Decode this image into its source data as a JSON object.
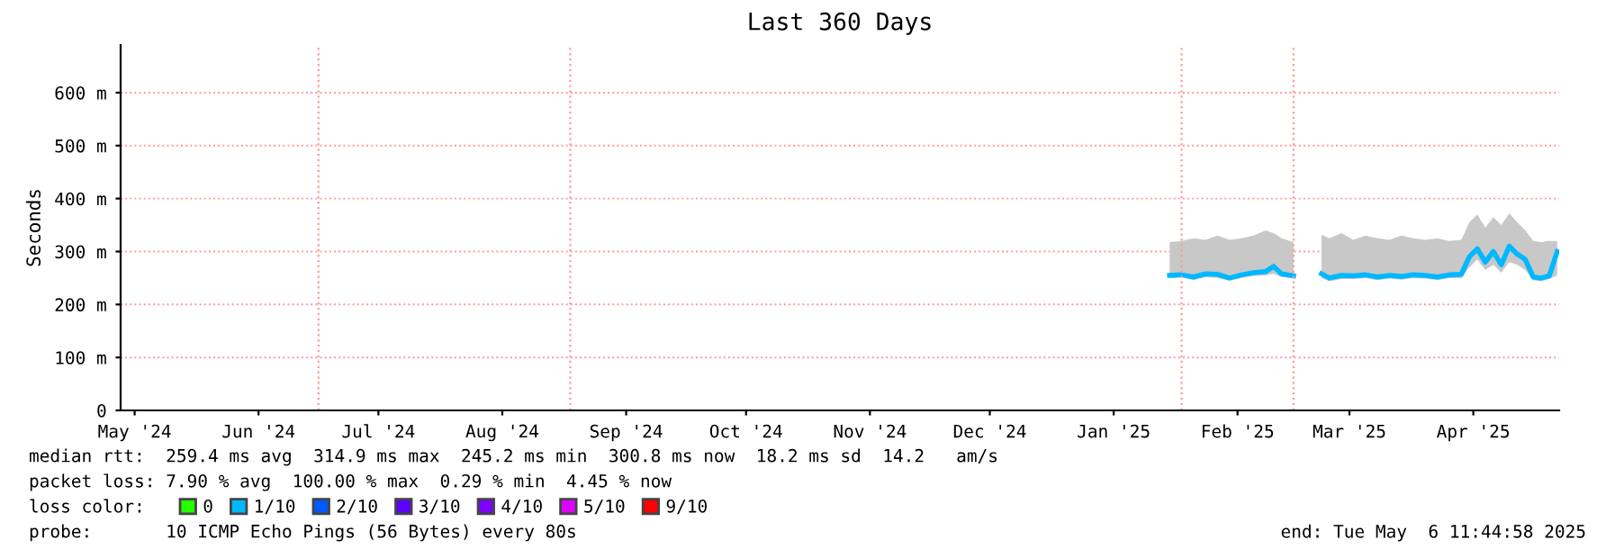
{
  "chart_data": {
    "type": "line",
    "title": "Last 360 Days",
    "ylabel": "Seconds",
    "x": [
      "2025-01-29",
      "2025-02-01",
      "2025-02-04",
      "2025-02-07",
      "2025-02-10",
      "2025-02-13",
      "2025-02-16",
      "2025-02-19",
      "2025-02-22",
      "2025-02-24",
      "2025-02-26",
      "2025-03-01",
      "2025-03-03",
      "2025-03-08",
      "2025-03-10",
      "2025-03-13",
      "2025-03-16",
      "2025-03-19",
      "2025-03-22",
      "2025-03-25",
      "2025-03-28",
      "2025-03-31",
      "2025-04-03",
      "2025-04-06",
      "2025-04-09",
      "2025-04-12",
      "2025-04-14",
      "2025-04-16",
      "2025-04-18",
      "2025-04-20",
      "2025-04-22",
      "2025-04-24",
      "2025-04-26",
      "2025-04-28",
      "2025-04-30",
      "2025-05-02",
      "2025-05-04",
      "2025-05-06"
    ],
    "series": [
      {
        "name": "0",
        "color": "#26ff00",
        "values": [
          null,
          null,
          null,
          null,
          null,
          null,
          null,
          null,
          null,
          null,
          null,
          null,
          null,
          null,
          null,
          null,
          null,
          null,
          null,
          null,
          null,
          null,
          null,
          null,
          null,
          null,
          null,
          null,
          null,
          null,
          null,
          null,
          null,
          null,
          null,
          null,
          null,
          null
        ]
      },
      {
        "name": "1/10",
        "color": "#00b8ff",
        "values": [
          255,
          256,
          252,
          258,
          257,
          250,
          256,
          260,
          262,
          272,
          258,
          254,
          null,
          258,
          250,
          255,
          254,
          256,
          252,
          255,
          253,
          256,
          255,
          252,
          256,
          257,
          290,
          305,
          280,
          300,
          275,
          310,
          295,
          285,
          252,
          250,
          254,
          300
        ],
        "lower": [
          250,
          252,
          246,
          252,
          250,
          245,
          250,
          254,
          255,
          258,
          252,
          250,
          null,
          250,
          244,
          248,
          248,
          250,
          246,
          249,
          247,
          250,
          249,
          246,
          250,
          250,
          270,
          285,
          265,
          275,
          260,
          280,
          275,
          265,
          246,
          244,
          248,
          255
        ],
        "upper": [
          318,
          320,
          325,
          322,
          330,
          322,
          325,
          330,
          340,
          335,
          325,
          318,
          null,
          332,
          325,
          335,
          322,
          330,
          325,
          322,
          330,
          325,
          322,
          325,
          320,
          322,
          355,
          370,
          345,
          365,
          350,
          372,
          355,
          340,
          320,
          318,
          320,
          320
        ]
      },
      {
        "name": "2/10",
        "color": "#0059ff",
        "values": [
          null,
          null,
          null,
          null,
          null,
          null,
          null,
          null,
          null,
          null,
          null,
          null,
          null,
          null,
          null,
          null,
          null,
          null,
          null,
          null,
          null,
          null,
          null,
          null,
          null,
          null,
          null,
          null,
          null,
          null,
          null,
          null,
          null,
          null,
          null,
          null,
          null,
          null
        ]
      },
      {
        "name": "3/10",
        "color": "#5e00ff",
        "values": [
          null,
          null,
          null,
          null,
          null,
          null,
          null,
          null,
          null,
          null,
          null,
          null,
          null,
          null,
          null,
          null,
          null,
          null,
          null,
          null,
          null,
          null,
          null,
          null,
          null,
          null,
          null,
          null,
          null,
          null,
          null,
          null,
          null,
          null,
          null,
          null,
          null,
          null
        ]
      },
      {
        "name": "4/10",
        "color": "#7e00ff",
        "values": [
          null,
          null,
          null,
          null,
          null,
          null,
          null,
          null,
          null,
          null,
          null,
          null,
          null,
          null,
          null,
          null,
          null,
          null,
          null,
          null,
          null,
          null,
          null,
          null,
          null,
          null,
          null,
          null,
          null,
          null,
          null,
          null,
          null,
          null,
          null,
          null,
          null,
          null
        ]
      },
      {
        "name": "5/10",
        "color": "#dd00ff",
        "values": [
          null,
          null,
          null,
          null,
          null,
          null,
          null,
          null,
          null,
          null,
          null,
          null,
          null,
          null,
          null,
          null,
          null,
          null,
          null,
          null,
          null,
          null,
          null,
          null,
          null,
          null,
          null,
          null,
          null,
          null,
          null,
          null,
          null,
          null,
          null,
          null,
          null,
          null
        ]
      },
      {
        "name": "9/10",
        "color": "#ff0000",
        "values": [
          null,
          null,
          null,
          null,
          null,
          null,
          null,
          null,
          null,
          null,
          null,
          null,
          null,
          null,
          null,
          null,
          null,
          null,
          null,
          null,
          null,
          null,
          null,
          null,
          null,
          null,
          null,
          null,
          null,
          null,
          null,
          null,
          null,
          null,
          null,
          null,
          null,
          null
        ]
      }
    ],
    "xlim": [
      "2024-05-11T11:44",
      "2025-05-06T11:44"
    ],
    "xticks": [
      {
        "value": "2024-05-15",
        "label": "May '24"
      },
      {
        "value": "2024-06-15",
        "label": "Jun '24"
      },
      {
        "value": "2024-07-15",
        "label": "Jul '24"
      },
      {
        "value": "2024-08-15",
        "label": "Aug '24"
      },
      {
        "value": "2024-09-15",
        "label": "Sep '24"
      },
      {
        "value": "2024-10-15",
        "label": "Oct '24"
      },
      {
        "value": "2024-11-15",
        "label": "Nov '24"
      },
      {
        "value": "2024-12-15",
        "label": "Dec '24"
      },
      {
        "value": "2025-01-15",
        "label": "Jan '25"
      },
      {
        "value": "2025-02-15",
        "label": "Feb '25"
      },
      {
        "value": "2025-03-15",
        "label": "Mar '25"
      },
      {
        "value": "2025-04-15",
        "label": "Apr '25"
      }
    ],
    "ylim": [
      0,
      690
    ],
    "yticks": [
      {
        "value": 0,
        "label": "0"
      },
      {
        "value": 100,
        "label": "100 m"
      },
      {
        "value": 200,
        "label": "200 m"
      },
      {
        "value": 300,
        "label": "300 m"
      },
      {
        "value": 400,
        "label": "400 m"
      },
      {
        "value": 500,
        "label": "500 m"
      },
      {
        "value": 600,
        "label": "600 m"
      }
    ],
    "ref_lines": [
      {
        "axis": "x",
        "value": "2024-06-30",
        "color": "#ff9999",
        "line_style": "dotted"
      },
      {
        "axis": "x",
        "value": "2024-09-01",
        "color": "#ff9999",
        "line_style": "dotted"
      },
      {
        "axis": "x",
        "value": "2025-02-01",
        "color": "#ff9999",
        "line_style": "dotted"
      },
      {
        "axis": "x",
        "value": "2025-03-01",
        "color": "#ff9999",
        "line_style": "dotted"
      }
    ],
    "grid": "y",
    "legend": "bottom",
    "marker": "none",
    "line_style": "solid",
    "annotations": [
      "median rtt:  259.4 ms avg  314.9 ms max  245.2 ms min  300.8 ms now  18.2 ms sd  14.2   am/s",
      "packet loss: 7.90 % avg  100.00 % max  0.29 % min  4.45 % now",
      "loss color:",
      "probe:       10 ICMP Echo Pings (56 Bytes) every 80s",
      "end: Tue May  6 11:44:58 2025"
    ]
  }
}
